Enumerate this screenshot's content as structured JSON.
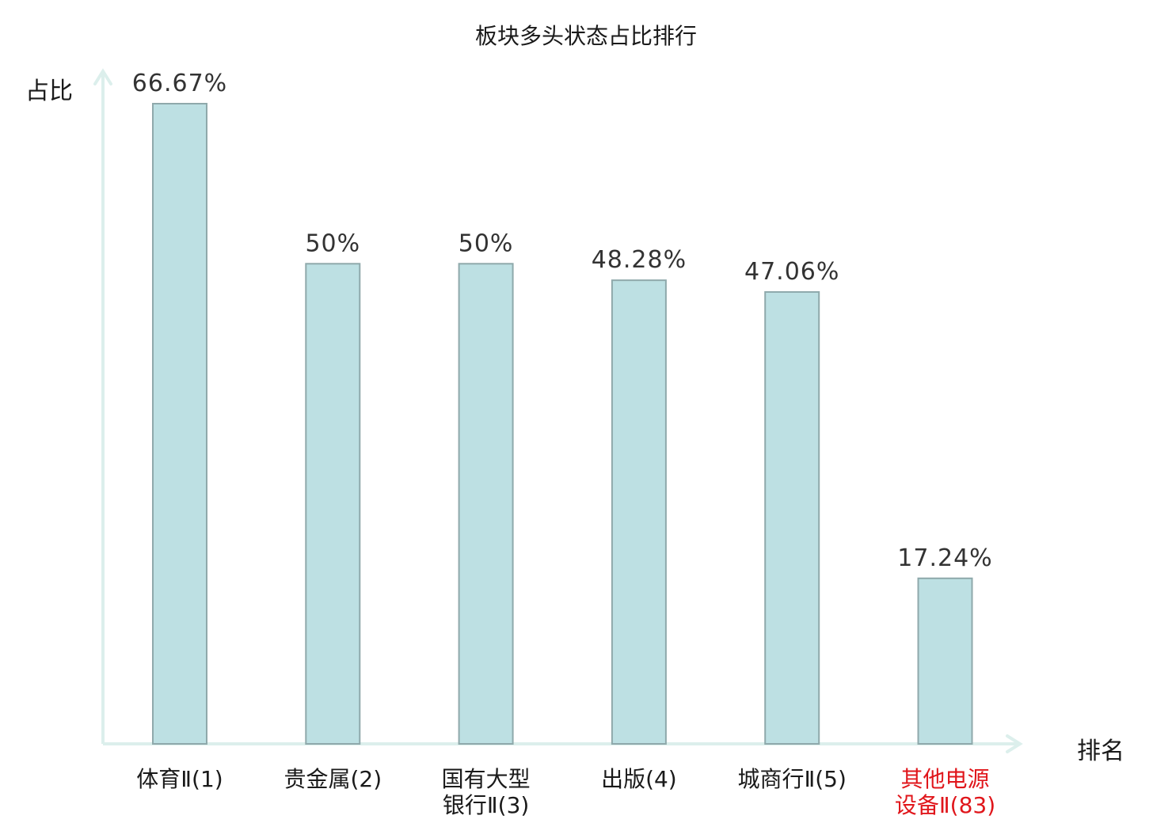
{
  "chart_data": {
    "type": "bar",
    "title": "板块多头状态占比排行",
    "ylabel": "占比",
    "xlabel": "排名",
    "categories": [
      [
        "体育Ⅱ(1)"
      ],
      [
        "贵金属(2)"
      ],
      [
        "国有大型",
        "银行Ⅱ(3)"
      ],
      [
        "出版(4)"
      ],
      [
        "城商行Ⅱ(5)"
      ],
      [
        "其他电源",
        "设备Ⅱ(83)"
      ]
    ],
    "values": [
      66.67,
      50,
      50,
      48.28,
      47.06,
      17.24
    ],
    "value_labels": [
      "66.67%",
      "50%",
      "50%",
      "48.28%",
      "47.06%",
      "17.24%"
    ],
    "highlight_index": 5,
    "ylim": [
      0,
      70
    ],
    "grid": false,
    "colors": {
      "bar_fill": "#bde0e3",
      "bar_stroke": "#8fa9ab",
      "axis": "#dcefec",
      "text": "#1a1a1a",
      "value_text": "#333333",
      "highlight_text": "#e0161b"
    }
  }
}
